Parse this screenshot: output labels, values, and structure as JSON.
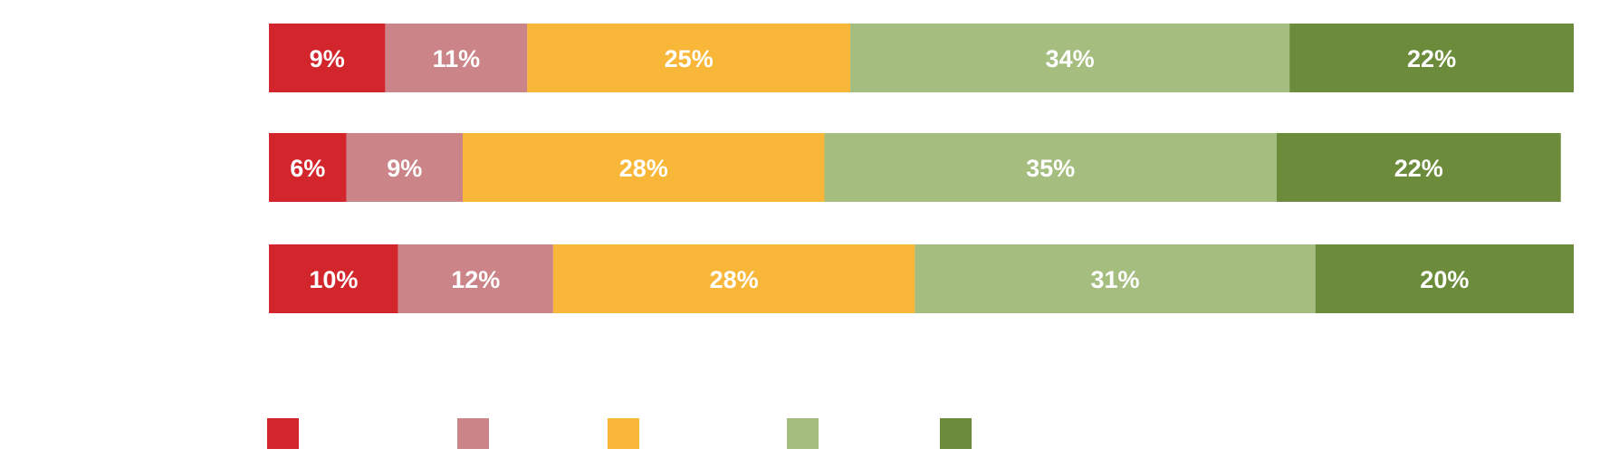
{
  "chart_data": {
    "type": "stacked-bar-horizontal",
    "categories": [
      null,
      null,
      null
    ],
    "xlim": [
      0,
      101
    ],
    "series": [
      {
        "color": "#d3262c",
        "values": [
          9,
          6,
          10
        ],
        "value_labels": [
          "9%",
          "6%",
          "10%"
        ]
      },
      {
        "color": "#cb8488",
        "values": [
          11,
          9,
          12
        ],
        "value_labels": [
          "11%",
          "9%",
          "12%"
        ]
      },
      {
        "color": "#f8b739",
        "values": [
          25,
          28,
          28
        ],
        "value_labels": [
          "25%",
          "28%",
          "28%"
        ]
      },
      {
        "color": "#a5be7f",
        "values": [
          34,
          35,
          31
        ],
        "value_labels": [
          "34%",
          "35%",
          "31%"
        ]
      },
      {
        "color": "#6c8c3b",
        "values": [
          22,
          22,
          20
        ],
        "value_labels": [
          "22%",
          "22%",
          "20%"
        ]
      }
    ]
  }
}
